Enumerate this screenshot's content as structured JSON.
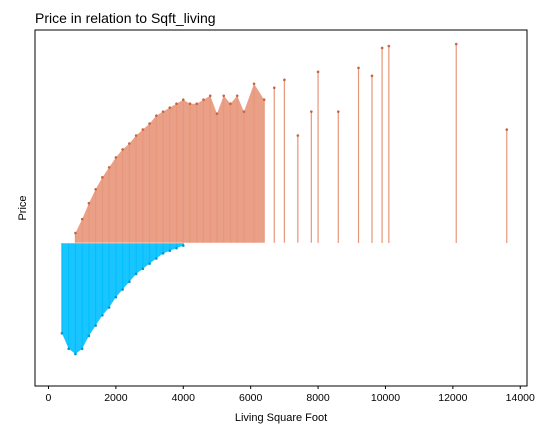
{
  "chart_data": {
    "type": "scatter",
    "title": "Price in relation to Sqft_living",
    "xlabel": "Living Square Foot",
    "ylabel": "Price",
    "xlim": [
      -400,
      14200
    ],
    "xticks": [
      0,
      2000,
      4000,
      6000,
      8000,
      10000,
      12000,
      14000
    ],
    "ytick_labels": false,
    "grid": false,
    "legend": "none",
    "colors": {
      "above": "#e8967a",
      "below": "#00bfff"
    },
    "series": [
      {
        "color": "#e8967a",
        "baseline_relative": "above",
        "x": [
          800,
          1000,
          1200,
          1400,
          1600,
          1800,
          2000,
          2200,
          2400,
          2600,
          2800,
          3000,
          3200,
          3400,
          3600,
          3800,
          4000,
          4200,
          4400,
          4600,
          4800,
          5000,
          5200,
          5400,
          5600,
          5800,
          6100,
          6400,
          6700,
          7000,
          7400,
          7800,
          8000,
          8600,
          9200,
          9600,
          9900,
          10100,
          12100,
          13600
        ],
        "y_rel": [
          0.05,
          0.12,
          0.2,
          0.27,
          0.33,
          0.38,
          0.43,
          0.47,
          0.5,
          0.54,
          0.57,
          0.6,
          0.64,
          0.66,
          0.68,
          0.7,
          0.72,
          0.7,
          0.7,
          0.72,
          0.74,
          0.65,
          0.74,
          0.7,
          0.74,
          0.66,
          0.8,
          0.72,
          0.78,
          0.82,
          0.54,
          0.66,
          0.86,
          0.66,
          0.88,
          0.84,
          0.98,
          0.99,
          1.0,
          0.57
        ]
      },
      {
        "color": "#00bfff",
        "baseline_relative": "below",
        "x": [
          400,
          600,
          800,
          1000,
          1200,
          1400,
          1600,
          1800,
          2000,
          2200,
          2400,
          2600,
          2800,
          3000,
          3200,
          3400,
          3600,
          3800,
          4000
        ],
        "y_rel": [
          0.7,
          0.82,
          0.86,
          0.82,
          0.72,
          0.64,
          0.56,
          0.5,
          0.42,
          0.36,
          0.3,
          0.24,
          0.2,
          0.16,
          0.12,
          0.08,
          0.06,
          0.04,
          0.02
        ]
      }
    ]
  }
}
